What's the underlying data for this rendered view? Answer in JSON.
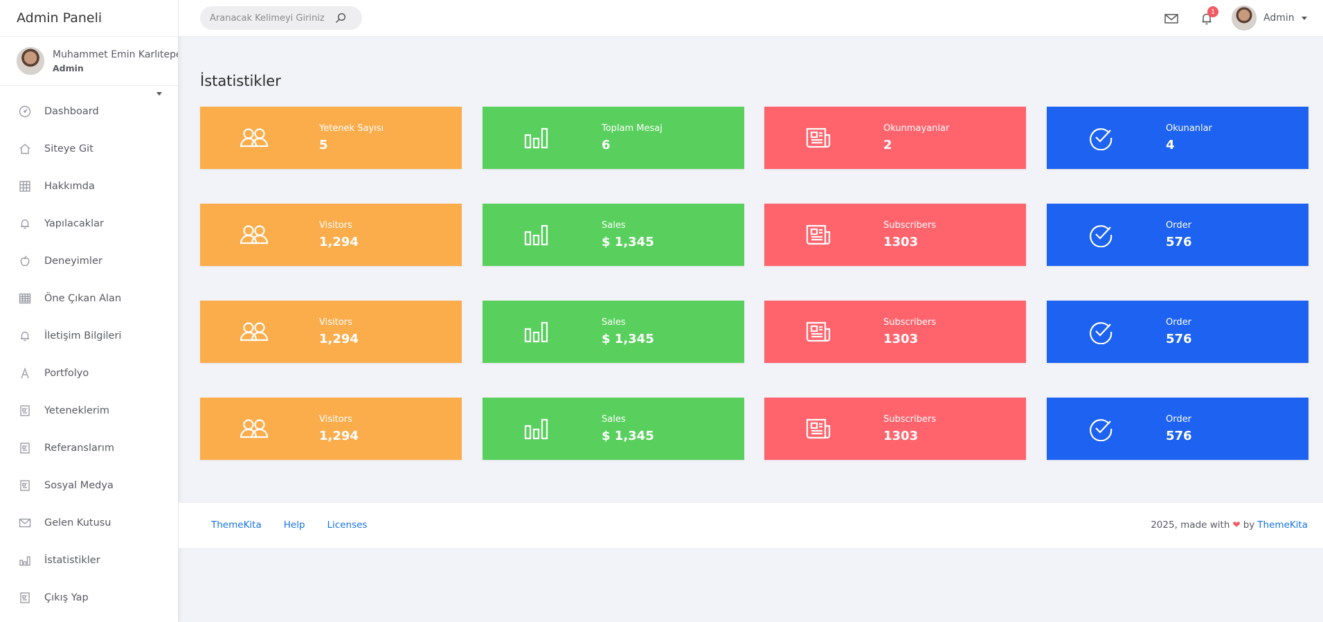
{
  "brand": "Admin Paneli",
  "sidebar": {
    "user_name": "Muhammet Emin Karlıtepe",
    "user_role": "Admin",
    "items": [
      {
        "label": "Dashboard",
        "icon": "speedometer-icon"
      },
      {
        "label": "Siteye Git",
        "icon": "home-icon"
      },
      {
        "label": "Hakkımda",
        "icon": "grid-icon"
      },
      {
        "label": "Yapılacaklar",
        "icon": "bell-icon"
      },
      {
        "label": "Deneyimler",
        "icon": "apple-icon"
      },
      {
        "label": "Öne Çıkan Alan",
        "icon": "table-icon"
      },
      {
        "label": "İletişim Bilgileri",
        "icon": "bell-icon"
      },
      {
        "label": "Portfolyo",
        "icon": "letter-a-icon"
      },
      {
        "label": "Yeteneklerim",
        "icon": "document-icon"
      },
      {
        "label": "Referanslarım",
        "icon": "document-icon"
      },
      {
        "label": "Sosyal Medya",
        "icon": "document-icon"
      },
      {
        "label": "Gelen Kutusu",
        "icon": "envelope-icon"
      },
      {
        "label": "İstatistikler",
        "icon": "bar-chart-icon"
      },
      {
        "label": "Çıkış Yap",
        "icon": "document-icon"
      }
    ]
  },
  "topbar": {
    "search_placeholder": "Aranacak Kelimeyi Giriniz",
    "notification_count": "1",
    "user_name": "Admin"
  },
  "page": {
    "title": "İstatistikler"
  },
  "colors": {
    "orange": "#fbad4c",
    "green": "#59d05d",
    "red": "#ff646d",
    "blue": "#1d62f0"
  },
  "cards": [
    [
      {
        "label": "Yetenek Sayısı",
        "value": "5",
        "color": "orange",
        "icon": "users-icon"
      },
      {
        "label": "Toplam Mesaj",
        "value": "6",
        "color": "green",
        "icon": "bar-chart-icon"
      },
      {
        "label": "Okunmayanlar",
        "value": "2",
        "color": "red",
        "icon": "newspaper-icon"
      },
      {
        "label": "Okunanlar",
        "value": "4",
        "color": "blue",
        "icon": "check-circle-icon"
      }
    ],
    [
      {
        "label": "Visitors",
        "value": "1,294",
        "color": "orange",
        "icon": "users-icon"
      },
      {
        "label": "Sales",
        "value": "$ 1,345",
        "color": "green",
        "icon": "bar-chart-icon"
      },
      {
        "label": "Subscribers",
        "value": "1303",
        "color": "red",
        "icon": "newspaper-icon"
      },
      {
        "label": "Order",
        "value": "576",
        "color": "blue",
        "icon": "check-circle-icon"
      }
    ],
    [
      {
        "label": "Visitors",
        "value": "1,294",
        "color": "orange",
        "icon": "users-icon"
      },
      {
        "label": "Sales",
        "value": "$ 1,345",
        "color": "green",
        "icon": "bar-chart-icon"
      },
      {
        "label": "Subscribers",
        "value": "1303",
        "color": "red",
        "icon": "newspaper-icon"
      },
      {
        "label": "Order",
        "value": "576",
        "color": "blue",
        "icon": "check-circle-icon"
      }
    ],
    [
      {
        "label": "Visitors",
        "value": "1,294",
        "color": "orange",
        "icon": "users-icon"
      },
      {
        "label": "Sales",
        "value": "$ 1,345",
        "color": "green",
        "icon": "bar-chart-icon"
      },
      {
        "label": "Subscribers",
        "value": "1303",
        "color": "red",
        "icon": "newspaper-icon"
      },
      {
        "label": "Order",
        "value": "576",
        "color": "blue",
        "icon": "check-circle-icon"
      }
    ]
  ],
  "footer": {
    "links": [
      "ThemeKita",
      "Help",
      "Licenses"
    ],
    "copy_prefix": "2025, made with",
    "copy_by": "by",
    "copy_link": "ThemeKita"
  }
}
